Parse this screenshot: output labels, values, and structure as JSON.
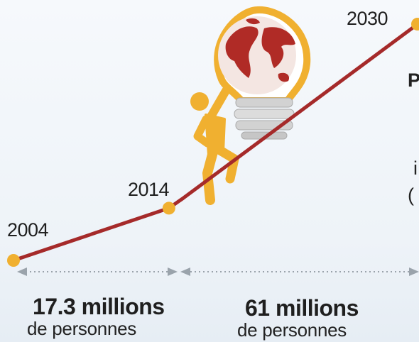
{
  "chart_data": {
    "type": "line",
    "x": [
      "2004",
      "2014",
      "2030"
    ],
    "points": [
      {
        "x": 2004,
        "y": 0
      },
      {
        "x": 2014,
        "y": 17.3
      },
      {
        "x": 2030,
        "y": 78.3
      }
    ],
    "segments": [
      {
        "from": "2004",
        "to": "2014",
        "value": "17.3 millions",
        "unit": "de personnes"
      },
      {
        "from": "2014",
        "to": "2030",
        "value": "61 millions",
        "unit": "de personnes"
      }
    ],
    "title": "",
    "xlabel": "",
    "ylabel": "",
    "grid": false,
    "colors": {
      "line": "#a52a2a",
      "marker": "#f0b030",
      "arrow": "#9aa3ab"
    }
  },
  "clipped_text": {
    "p": "P",
    "i": "i",
    "paren": "("
  },
  "illustration": {
    "icons": [
      "lightbulb-globe-icon",
      "climbing-person-icon"
    ]
  }
}
